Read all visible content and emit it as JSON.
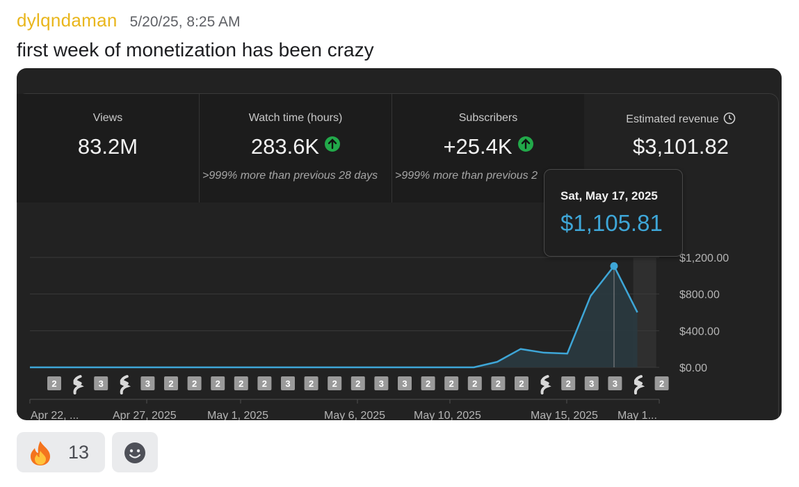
{
  "message": {
    "username": "dylqndaman",
    "timestamp": "5/20/25, 8:25 AM",
    "text": "first week of monetization has been crazy"
  },
  "stats": [
    {
      "label": "Views",
      "value": "83.2M",
      "note": ""
    },
    {
      "label": "Watch time (hours)",
      "value": "283.6K",
      "note": ">999% more than previous 28 days"
    },
    {
      "label": "Subscribers",
      "value": "+25.4K",
      "note": ">999% more than previous 2"
    },
    {
      "label": "Estimated revenue",
      "value": "$3,101.82",
      "note": ""
    }
  ],
  "tooltip": {
    "date": "Sat, May 17, 2025",
    "value": "$1,105.81"
  },
  "chart_data": {
    "type": "area",
    "series": [
      {
        "values": [
          0,
          0,
          0,
          0,
          0,
          0,
          0,
          0,
          0,
          0,
          0,
          0,
          0,
          0,
          0,
          0,
          0,
          0,
          0,
          0,
          60,
          200,
          160,
          150,
          780,
          1105.81,
          600
        ]
      }
    ],
    "ylim": [
      0,
      1200
    ],
    "yticks": [
      "$1,200.00",
      "$800.00",
      "$400.00",
      "$0.00"
    ],
    "xlabels": [
      "Apr 22, ...",
      "Apr 27, 2025",
      "May 1, 2025",
      "May 6, 2025",
      "May 10, 2025",
      "May 15, 2025",
      "May 1..."
    ],
    "markers": [
      "2",
      "S",
      "3",
      "S",
      "3",
      "2",
      "2",
      "2",
      "2",
      "2",
      "3",
      "2",
      "2",
      "2",
      "3",
      "3",
      "2",
      "2",
      "2",
      "2",
      "2",
      "S",
      "2",
      "3",
      "3",
      "S",
      "2"
    ],
    "line_color": "#3ea6d7"
  },
  "reactions": [
    {
      "emoji": "fire-icon",
      "count": "13"
    }
  ],
  "add_reaction": "add-reaction-icon"
}
